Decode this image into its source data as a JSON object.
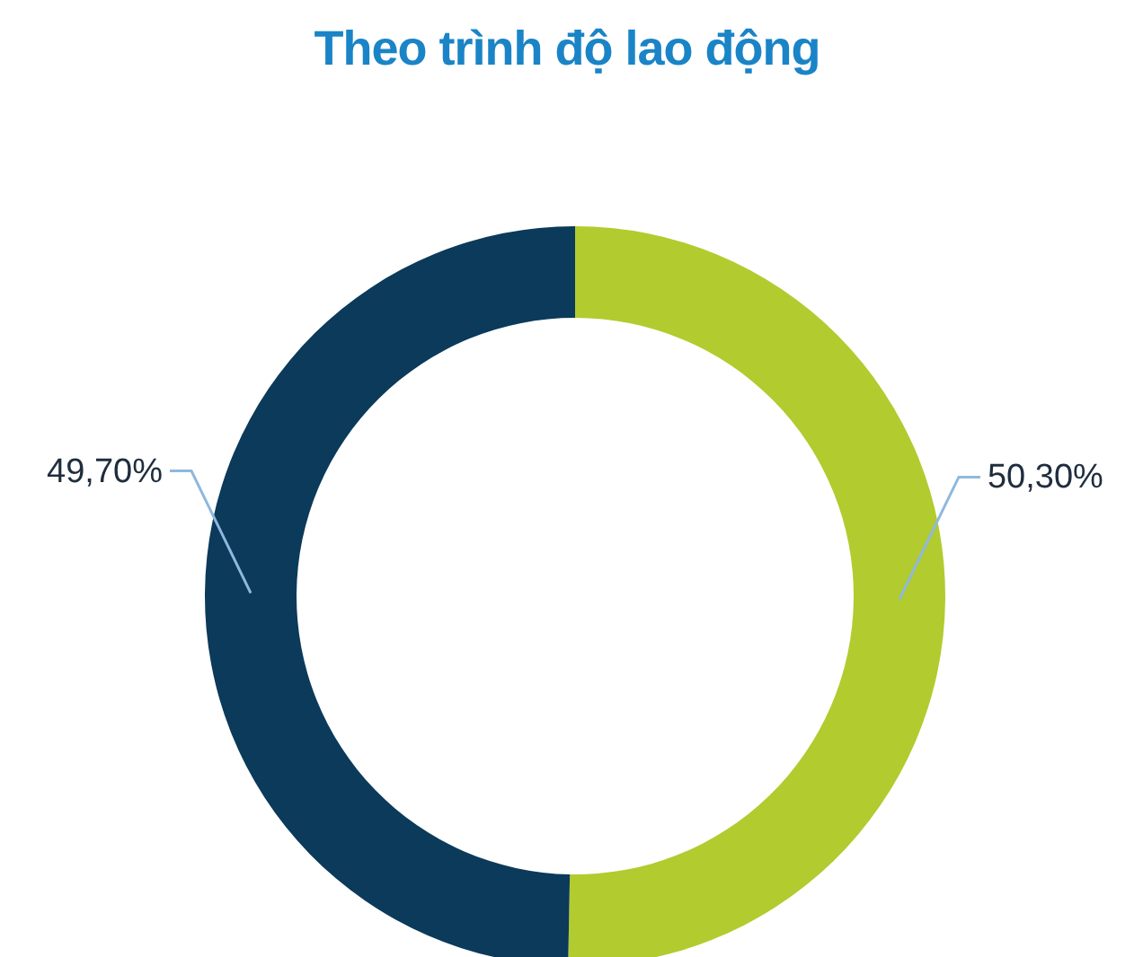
{
  "chart_data": {
    "type": "donut",
    "title": "Theo trình độ lao động",
    "categories": [
      null,
      null
    ],
    "values": [
      50.3,
      49.7
    ],
    "colors": [
      "#b2cb2e",
      "#0b3a5a"
    ],
    "value_labels": [
      "50,30%",
      "49,70%"
    ],
    "legend": false
  }
}
